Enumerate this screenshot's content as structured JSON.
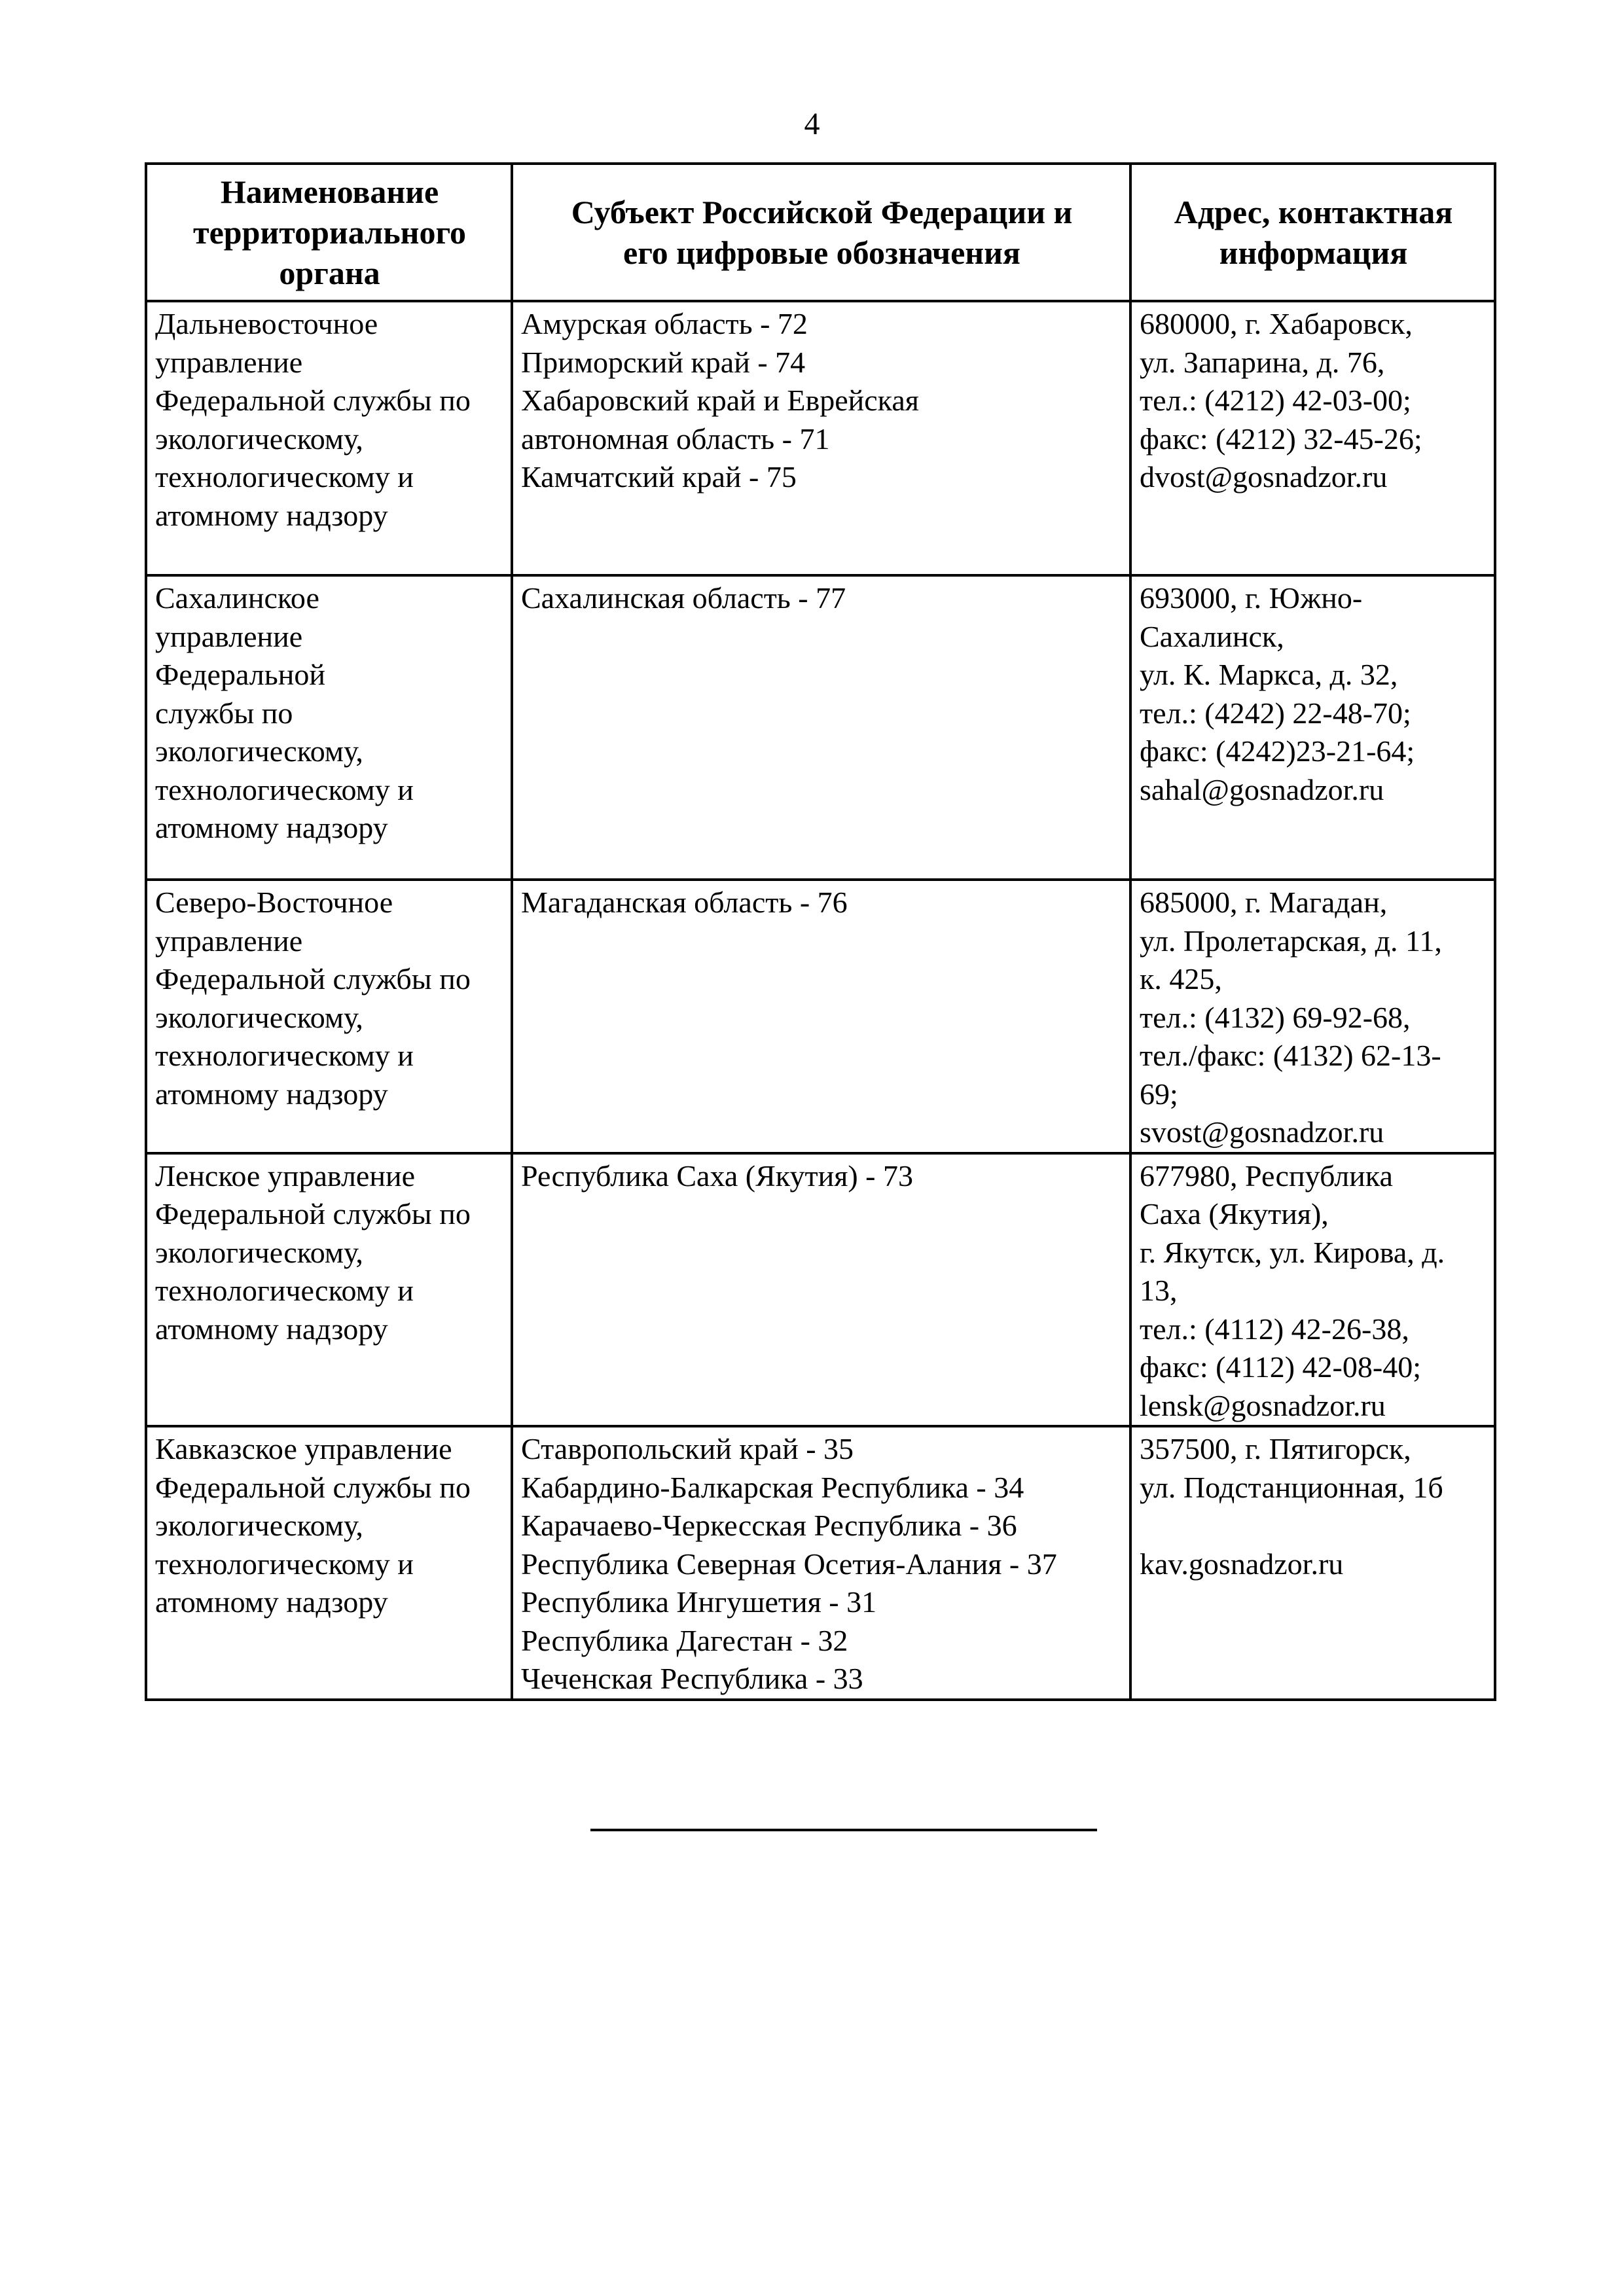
{
  "page_number": "4",
  "table": {
    "headers": [
      [
        "Наименование",
        "территориального",
        "органа"
      ],
      [
        "Субъект Российской Федерации и",
        "его цифровые обозначения"
      ],
      [
        "Адрес, контактная",
        "информация"
      ]
    ],
    "rows": [
      {
        "name": [
          "Дальневосточное",
          "управление",
          "Федеральной службы по",
          "экологическому,",
          "технологическому и",
          "атомному надзору"
        ],
        "subjects": [
          "Амурская область - 72",
          "Приморский край  - 74",
          "Хабаровский край и Еврейская",
          "автономная область - 71",
          "Камчатский край - 75"
        ],
        "address": [
          "680000, г. Хабаровск,",
          "ул. Запарина, д. 76,",
          "тел.: (4212) 42-03-00;",
          "факс: (4212) 32-45-26;",
          "dvost@gosnadzor.ru"
        ]
      },
      {
        "name": [
          "Сахалинское",
          "управление",
          "Федеральной",
          "службы по",
          "экологическому,",
          "технологическому и",
          "атомному надзору"
        ],
        "subjects": [
          "Сахалинская область - 77"
        ],
        "address": [
          "693000, г. Южно-",
          "Сахалинск,",
          "ул. К. Маркса, д. 32,",
          "тел.: (4242) 22-48-70;",
          "факс: (4242)23-21-64;",
          "sahal@gosnadzor.ru"
        ]
      },
      {
        "name": [
          "Северо-Восточное",
          "управление",
          "Федеральной службы по",
          "экологическому,",
          "технологическому и",
          "атомному надзору"
        ],
        "subjects": [
          "Магаданская область - 76"
        ],
        "address": [
          "685000, г. Магадан,",
          "ул. Пролетарская, д. 11,",
          "к. 425,",
          "тел.: (4132) 69-92-68,",
          "тел./факс: (4132) 62-13-",
          "69;",
          "svost@gosnadzor.ru"
        ]
      },
      {
        "name": [
          "Ленское управление",
          "Федеральной службы по",
          "экологическому,",
          "технологическому и",
          "атомному надзору"
        ],
        "subjects": [
          "Республика Саха (Якутия) - 73"
        ],
        "address": [
          "677980, Республика",
          "Саха (Якутия),",
          "г. Якутск, ул. Кирова, д.",
          "13,",
          "тел.: (4112) 42-26-38,",
          "факс: (4112) 42-08-40;",
          "lensk@gosnadzor.ru"
        ]
      },
      {
        "name": [
          "Кавказское управление",
          "Федеральной службы по",
          "экологическому,",
          "технологическому и",
          "атомному надзору"
        ],
        "subjects": [
          "Ставропольский край - 35",
          "Кабардино-Балкарская Республика - 34",
          "Карачаево-Черкесская Республика - 36",
          "Республика Северная Осетия-Алания - 37",
          "Республика Ингушетия - 31",
          "Республика Дагестан - 32",
          "Чеченская Республика - 33"
        ],
        "address": [
          "357500, г. Пятигорск,",
          "ул. Подстанционная, 1б",
          "",
          "kav.gosnadzor.ru"
        ]
      }
    ]
  }
}
